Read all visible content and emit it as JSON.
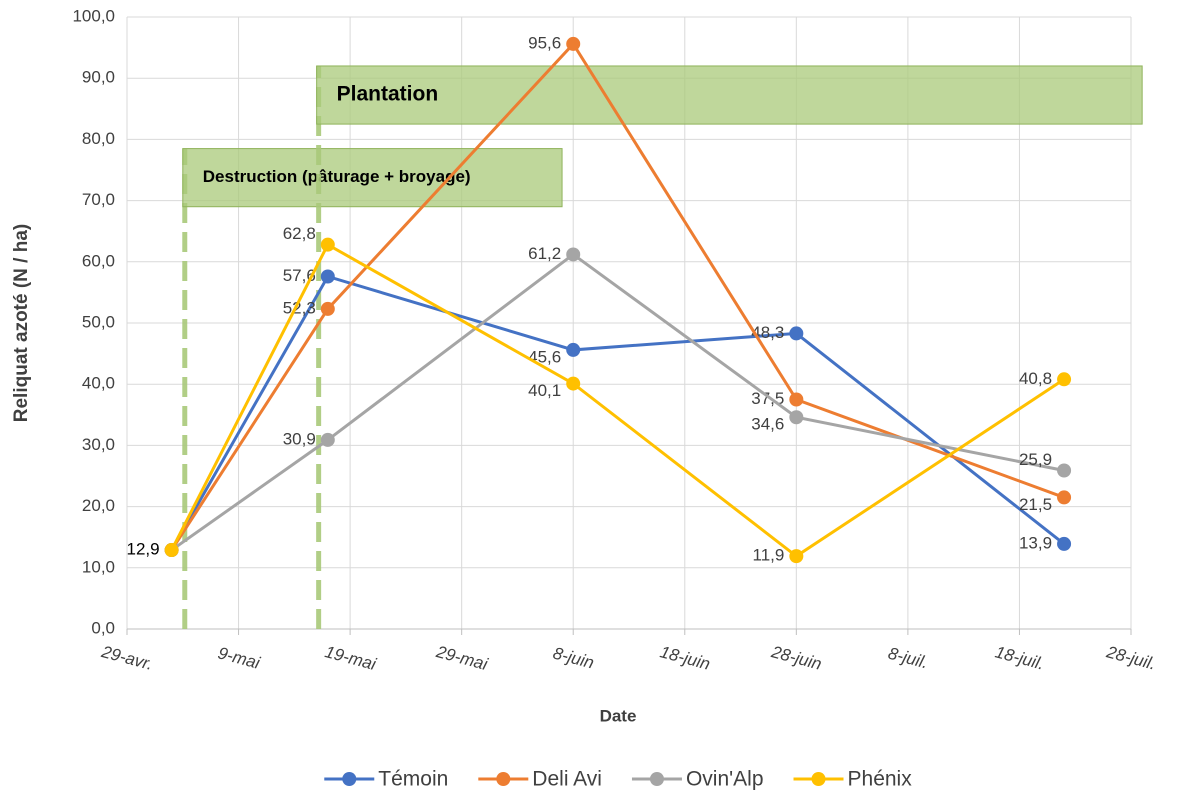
{
  "chart_data": {
    "type": "line",
    "y_label": "Reliquat azoté (N / ha)",
    "x_label": "Date",
    "x": [
      "05-03",
      "05-17",
      "06-08",
      "06-28",
      "07-22"
    ],
    "xlim": [
      "04-29",
      "07-28"
    ],
    "xticks": [
      {
        "value": "04-29",
        "label": "29-avr."
      },
      {
        "value": "05-09",
        "label": "9-mai"
      },
      {
        "value": "05-19",
        "label": "19-mai"
      },
      {
        "value": "05-29",
        "label": "29-mai"
      },
      {
        "value": "06-08",
        "label": "8-juin"
      },
      {
        "value": "06-18",
        "label": "18-juin"
      },
      {
        "value": "06-28",
        "label": "28-juin"
      },
      {
        "value": "07-08",
        "label": "8-juil."
      },
      {
        "value": "07-18",
        "label": "18-juil."
      },
      {
        "value": "07-28",
        "label": "28-juil."
      }
    ],
    "ylim": [
      0,
      100
    ],
    "yticks": [
      {
        "value": 0,
        "label": "0,0"
      },
      {
        "value": 10,
        "label": "10,0"
      },
      {
        "value": 20,
        "label": "20,0"
      },
      {
        "value": 30,
        "label": "30,0"
      },
      {
        "value": 40,
        "label": "40,0"
      },
      {
        "value": 50,
        "label": "50,0"
      },
      {
        "value": 60,
        "label": "60,0"
      },
      {
        "value": 70,
        "label": "70,0"
      },
      {
        "value": 80,
        "label": "80,0"
      },
      {
        "value": 90,
        "label": "90,0"
      },
      {
        "value": 100,
        "label": "100,0"
      }
    ],
    "grid": true,
    "legend": "bottom",
    "series": [
      {
        "name": "Témoin",
        "color": "#4472c4",
        "values": [
          12.9,
          57.6,
          45.6,
          48.3,
          13.9
        ],
        "value_labels": [
          null,
          "57,6",
          "45,6",
          "48,3",
          "13,9"
        ]
      },
      {
        "name": "Deli Avi",
        "color": "#ed7d31",
        "values": [
          12.9,
          52.3,
          95.6,
          37.5,
          21.5
        ],
        "value_labels": [
          null,
          "52,3",
          "95,6",
          "37,5",
          "21,5"
        ]
      },
      {
        "name": "Ovin'Alp",
        "color": "#a5a5a5",
        "values": [
          12.9,
          30.9,
          61.2,
          34.6,
          25.9
        ],
        "value_labels": [
          null,
          "30,9",
          "61,2",
          "34,6",
          "25,9"
        ]
      },
      {
        "name": "Phénix",
        "color": "#ffc000",
        "values": [
          12.9,
          62.8,
          40.1,
          11.9,
          40.8
        ],
        "value_labels": [
          "12,9",
          "62,8",
          "40,1",
          "11,9",
          "40,8"
        ]
      }
    ],
    "annotations": [
      {
        "text": "Destruction (pâturage + broyage)",
        "x": [
          "05-04",
          "06-07"
        ],
        "y": [
          69,
          78.5
        ],
        "color": "#a9c97a"
      },
      {
        "text": "Plantation",
        "x": [
          "05-16",
          "07-29"
        ],
        "y": [
          82.5,
          92
        ],
        "color": "#a9c97a"
      }
    ]
  }
}
